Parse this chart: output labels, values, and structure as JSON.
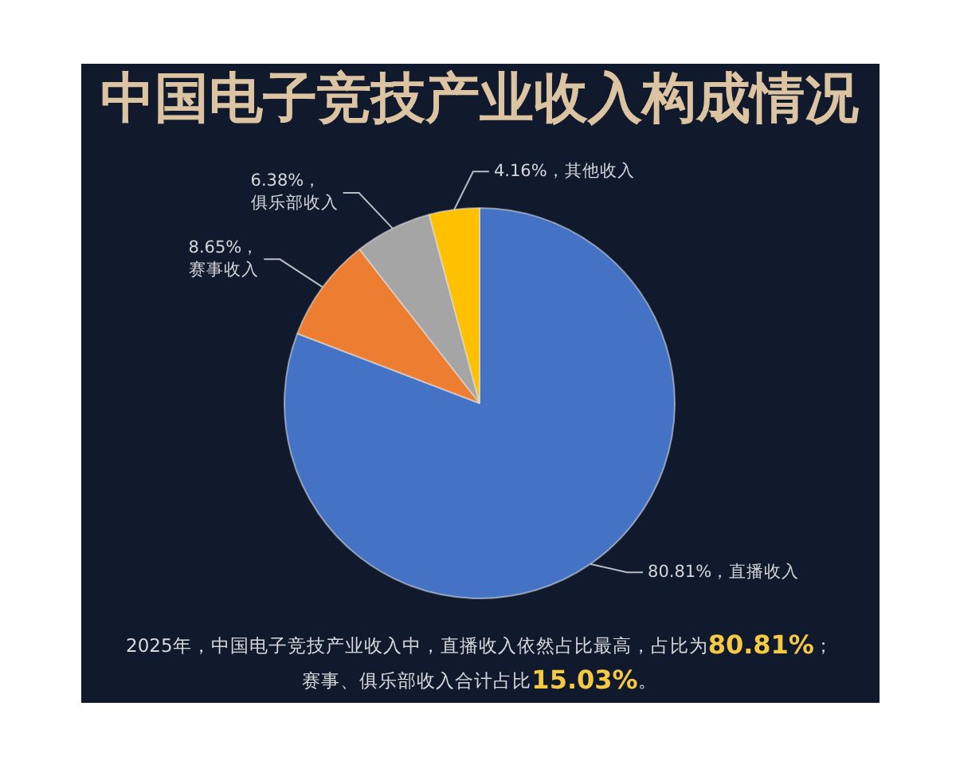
{
  "chart_data": {
    "type": "pie",
    "title": "中国电子竞技产业收入构成情况",
    "categories": [
      "直播收入",
      "赛事收入",
      "俱乐部收入",
      "其他收入"
    ],
    "values": [
      80.81,
      8.65,
      6.38,
      4.16
    ],
    "colors": [
      "#4472c4",
      "#ed7d31",
      "#a5a5a5",
      "#ffc000"
    ],
    "value_labels": [
      "80.81%，",
      "8.65%，",
      "6.38%，",
      "4.16%，"
    ],
    "annotations": [
      "2025年，中国电子竞技产业收入中，直播收入依然占比最高，占比为80.81%；",
      "赛事、俱乐部收入合计占比15.03%。"
    ]
  }
}
